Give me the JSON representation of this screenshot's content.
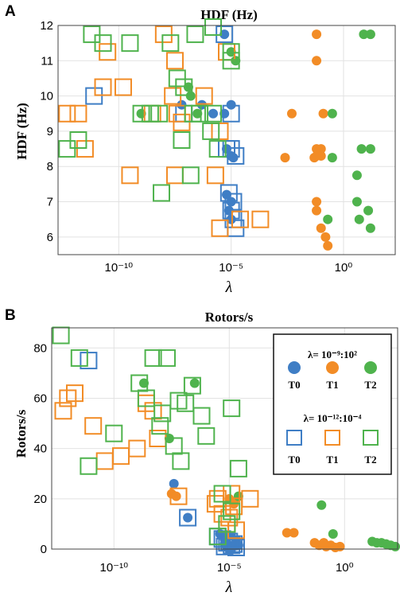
{
  "colors": {
    "T0": "#3f7ec5",
    "T1": "#f28c26",
    "T2": "#4fb34d"
  },
  "legend": {
    "group1_label": "λ= 10⁻⁹:10²",
    "group2_label": "λ= 10⁻¹²:10⁻⁴",
    "entries": [
      "T0",
      "T1",
      "T2"
    ]
  },
  "chart_data": [
    {
      "panel_label": "A",
      "type": "scatter",
      "title": "HDF (Hz)",
      "xlabel": "λ",
      "ylabel": "HDF (Hz)",
      "xscale": "log",
      "xlim_log10": [
        -12.7,
        2.3
      ],
      "ylim": [
        5.5,
        12.0
      ],
      "xticks": [
        {
          "log": -10,
          "label": "10⁻¹⁰"
        },
        {
          "log": -5,
          "label": "10⁻⁵"
        },
        {
          "log": 0,
          "label": "10⁰"
        }
      ],
      "yticks": [
        6,
        7,
        8,
        9,
        10,
        11,
        12
      ],
      "grid": true,
      "series": [
        {
          "group": "T0",
          "marker": "circle",
          "points": [
            [
              -6.3,
              9.75
            ],
            [
              -5.8,
              9.5
            ],
            [
              -5.3,
              11.75
            ],
            [
              -5,
              9.75
            ],
            [
              -5.3,
              9.5
            ],
            [
              -5.2,
              8.5
            ],
            [
              -5,
              8.3
            ],
            [
              -4.9,
              8.25
            ],
            [
              -5.2,
              7.2
            ],
            [
              -5,
              7
            ],
            [
              -5.1,
              6.75
            ],
            [
              -5,
              6.5
            ],
            [
              -7.2,
              9.75
            ]
          ]
        },
        {
          "group": "T1",
          "marker": "circle",
          "points": [
            [
              -2.3,
              9.5
            ],
            [
              -2.6,
              8.25
            ],
            [
              -1.2,
              11.75
            ],
            [
              -1.2,
              11
            ],
            [
              -1.2,
              8.5
            ],
            [
              -1.2,
              8.3
            ],
            [
              -1.3,
              8.25
            ],
            [
              -1,
              8.5
            ],
            [
              -1,
              8.3
            ],
            [
              -0.9,
              9.5
            ],
            [
              -1.2,
              7
            ],
            [
              -1.2,
              6.75
            ],
            [
              -1,
              6.25
            ],
            [
              -0.8,
              6
            ],
            [
              -0.7,
              5.75
            ]
          ]
        },
        {
          "group": "T2",
          "marker": "circle",
          "points": [
            [
              -9,
              9.5
            ],
            [
              -6.9,
              10.25
            ],
            [
              -6.8,
              10
            ],
            [
              -6.5,
              9.5
            ],
            [
              -5,
              11.25
            ],
            [
              -4.8,
              11
            ],
            [
              -0.5,
              9.5
            ],
            [
              -0.5,
              8.25
            ],
            [
              -0.7,
              6.5
            ],
            [
              0.9,
              11.75
            ],
            [
              1.2,
              11.75
            ],
            [
              0.8,
              8.5
            ],
            [
              1.2,
              8.5
            ],
            [
              0.6,
              7.75
            ],
            [
              0.6,
              7
            ],
            [
              0.7,
              6.5
            ],
            [
              1.1,
              6.75
            ],
            [
              1.2,
              6.25
            ]
          ]
        },
        {
          "group": "T0",
          "marker": "square",
          "points": [
            [
              -11.1,
              10
            ],
            [
              -7.1,
              9.5
            ],
            [
              -5.3,
              11.75
            ],
            [
              -5,
              9.5
            ],
            [
              -5.2,
              8.5
            ],
            [
              -5,
              8.5
            ],
            [
              -4.8,
              8.3
            ],
            [
              -5.1,
              7.25
            ],
            [
              -4.9,
              7
            ],
            [
              -5,
              6.75
            ],
            [
              -4.9,
              6.5
            ],
            [
              -4.8,
              6.25
            ]
          ]
        },
        {
          "group": "T1",
          "marker": "square",
          "points": [
            [
              -12.3,
              9.5
            ],
            [
              -11.8,
              9.5
            ],
            [
              -11.5,
              8.5
            ],
            [
              -10.7,
              10.25
            ],
            [
              -10.5,
              11.25
            ],
            [
              -9.8,
              10.25
            ],
            [
              -9.5,
              7.75
            ],
            [
              -8.5,
              9.5
            ],
            [
              -8,
              11.75
            ],
            [
              -7.5,
              11
            ],
            [
              -7.6,
              10
            ],
            [
              -7.4,
              9.5
            ],
            [
              -7.2,
              9.25
            ],
            [
              -7.5,
              7.75
            ],
            [
              -6.2,
              10
            ],
            [
              -5.5,
              9
            ],
            [
              -5.7,
              7.75
            ],
            [
              -5.5,
              6.25
            ],
            [
              -4.6,
              6.5
            ],
            [
              -3.7,
              6.5
            ],
            [
              -5.2,
              11.25
            ]
          ]
        },
        {
          "group": "T2",
          "marker": "square",
          "points": [
            [
              -12.3,
              8.5
            ],
            [
              -11.8,
              8.75
            ],
            [
              -11.2,
              11.75
            ],
            [
              -10.7,
              11.5
            ],
            [
              -9.5,
              11.5
            ],
            [
              -9,
              9.5
            ],
            [
              -8.6,
              9.5
            ],
            [
              -8.2,
              9.5
            ],
            [
              -7.7,
              11.5
            ],
            [
              -7.4,
              10.5
            ],
            [
              -7.1,
              10.25
            ],
            [
              -6.7,
              9.5
            ],
            [
              -7.2,
              8.75
            ],
            [
              -8.1,
              7.25
            ],
            [
              -6.8,
              7.75
            ],
            [
              -6.4,
              9.5
            ],
            [
              -5.8,
              9.5
            ],
            [
              -5.9,
              9
            ],
            [
              -6.6,
              11.75
            ],
            [
              -5.8,
              12.25
            ],
            [
              -5,
              11.25
            ],
            [
              -5,
              11
            ],
            [
              -5.6,
              8.5
            ]
          ]
        }
      ]
    },
    {
      "panel_label": "B",
      "type": "scatter",
      "title": "Rotors/s",
      "xlabel": "λ",
      "ylabel": "Rotors/s",
      "xscale": "log",
      "xlim_log10": [
        -12.7,
        2.3
      ],
      "ylim": [
        0,
        88
      ],
      "xticks": [
        {
          "log": -10,
          "label": "10⁻¹⁰"
        },
        {
          "log": -5,
          "label": "10⁻⁵"
        },
        {
          "log": 0,
          "label": "10⁰"
        }
      ],
      "yticks": [
        0,
        20,
        40,
        60,
        80
      ],
      "grid": true,
      "series": [
        {
          "group": "T0",
          "marker": "circle",
          "points": [
            [
              -7.4,
              26
            ],
            [
              -6.8,
              12.5
            ],
            [
              -5.4,
              6
            ],
            [
              -5.2,
              4
            ],
            [
              -5.2,
              2
            ],
            [
              -5,
              1.5
            ],
            [
              -4.9,
              0.5
            ],
            [
              -4.7,
              3
            ],
            [
              -4.6,
              1.5
            ],
            [
              -5.1,
              5
            ]
          ]
        },
        {
          "group": "T1",
          "marker": "circle",
          "points": [
            [
              -7.5,
              22
            ],
            [
              -7.3,
              21
            ],
            [
              -5,
              20
            ],
            [
              -4.8,
              18
            ],
            [
              -2.5,
              6.5
            ],
            [
              -2.2,
              6.5
            ],
            [
              -1.3,
              2.5
            ],
            [
              -1.1,
              1.5
            ],
            [
              -0.9,
              2.5
            ],
            [
              -0.8,
              1
            ],
            [
              -0.6,
              1.5
            ],
            [
              -0.4,
              0.5
            ],
            [
              -0.2,
              1
            ]
          ]
        },
        {
          "group": "T2",
          "marker": "circle",
          "points": [
            [
              -8.7,
              66
            ],
            [
              -6.5,
              66
            ],
            [
              -7.6,
              44
            ],
            [
              -4.6,
              21
            ],
            [
              -1,
              17.5
            ],
            [
              -0.5,
              6
            ],
            [
              1.2,
              3
            ],
            [
              1.4,
              2.5
            ],
            [
              1.6,
              2.5
            ],
            [
              1.8,
              2
            ],
            [
              2,
              1.5
            ],
            [
              2.2,
              1
            ]
          ]
        },
        {
          "group": "T0",
          "marker": "square",
          "points": [
            [
              -11.1,
              75
            ],
            [
              -6.8,
              12.5
            ],
            [
              -5.5,
              5
            ],
            [
              -5.3,
              4
            ],
            [
              -5,
              3
            ],
            [
              -4.8,
              2
            ],
            [
              -5.2,
              1
            ],
            [
              -4.7,
              0.5
            ],
            [
              -5.1,
              2.5
            ],
            [
              -4.9,
              1.5
            ]
          ]
        },
        {
          "group": "T1",
          "marker": "square",
          "points": [
            [
              -12.2,
              55
            ],
            [
              -12,
              60
            ],
            [
              -11.7,
              62
            ],
            [
              -10.9,
              49
            ],
            [
              -10.4,
              35
            ],
            [
              -9.7,
              37
            ],
            [
              -9,
              40
            ],
            [
              -8.6,
              58
            ],
            [
              -8.3,
              55
            ],
            [
              -8.1,
              44
            ],
            [
              -7.2,
              21
            ],
            [
              -5.6,
              18
            ],
            [
              -5.5,
              20
            ],
            [
              -5.3,
              14
            ],
            [
              -5.1,
              10
            ],
            [
              -4.8,
              17
            ],
            [
              -5,
              12.5
            ],
            [
              -4.9,
              22
            ],
            [
              -4.7,
              7.5
            ],
            [
              -4.1,
              20
            ]
          ]
        },
        {
          "group": "T2",
          "marker": "square",
          "points": [
            [
              -12.3,
              85
            ],
            [
              -11.5,
              76
            ],
            [
              -11.1,
              33
            ],
            [
              -10,
              46
            ],
            [
              -8.9,
              66
            ],
            [
              -8.6,
              60
            ],
            [
              -8.3,
              76
            ],
            [
              -8,
              49
            ],
            [
              -7.7,
              76
            ],
            [
              -7.9,
              54
            ],
            [
              -7.2,
              59
            ],
            [
              -6.9,
              58
            ],
            [
              -7.4,
              41
            ],
            [
              -7.1,
              35
            ],
            [
              -6.6,
              65
            ],
            [
              -6.2,
              53
            ],
            [
              -6,
              45
            ],
            [
              -4.9,
              56
            ],
            [
              -4.6,
              32
            ],
            [
              -5.3,
              22
            ],
            [
              -4.9,
              15
            ],
            [
              -5.5,
              5
            ],
            [
              -5.1,
              10
            ]
          ]
        }
      ]
    }
  ]
}
